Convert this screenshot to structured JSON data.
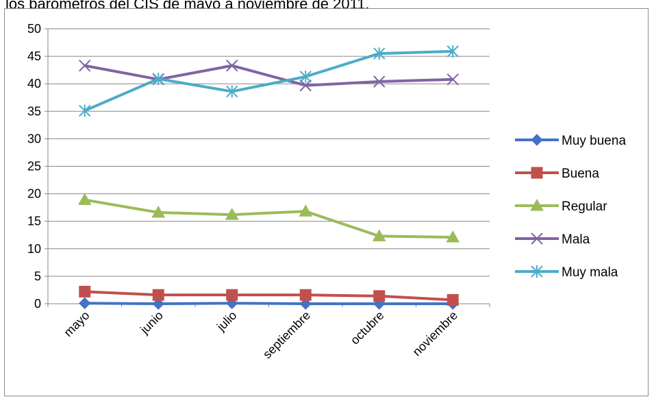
{
  "caption": "los barómetros del CIS de mayo a noviembre de 2011.",
  "chart_data": {
    "type": "line",
    "categories": [
      "mayo",
      "junio",
      "julio",
      "septiembre",
      "octubre",
      "noviembre"
    ],
    "ylim": [
      0,
      50
    ],
    "yticks": [
      0,
      5,
      10,
      15,
      20,
      25,
      30,
      35,
      40,
      45,
      50
    ],
    "grid": true,
    "legend_position": "right",
    "series": [
      {
        "name": "Muy buena",
        "color": "#4472C4",
        "marker": "diamond",
        "values": [
          0.1,
          0.0,
          0.1,
          0.0,
          0.0,
          0.0
        ]
      },
      {
        "name": "Buena",
        "color": "#C0504D",
        "marker": "square",
        "values": [
          2.2,
          1.6,
          1.6,
          1.6,
          1.4,
          0.7
        ]
      },
      {
        "name": "Regular",
        "color": "#9BBB59",
        "marker": "triangle",
        "values": [
          18.9,
          16.6,
          16.2,
          16.8,
          12.3,
          12.1
        ]
      },
      {
        "name": "Mala",
        "color": "#8064A2",
        "marker": "x",
        "values": [
          43.3,
          40.8,
          43.3,
          39.7,
          40.4,
          40.8
        ]
      },
      {
        "name": "Muy mala",
        "color": "#4BACC6",
        "marker": "star",
        "values": [
          35.1,
          40.9,
          38.6,
          41.3,
          45.5,
          45.9
        ]
      }
    ]
  }
}
